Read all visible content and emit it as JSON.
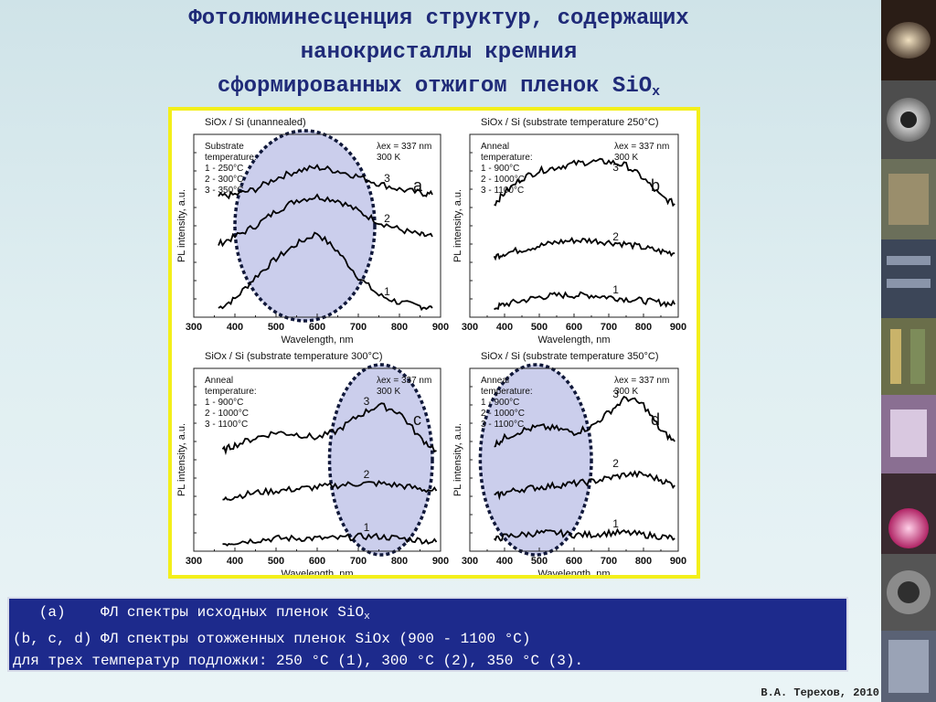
{
  "title": {
    "line1": "Фотолюминесценция структур, содержащих",
    "line2": "нанокристаллы кремния",
    "line3": "сформированных отжигом пленок SiO",
    "line3_sub": "x"
  },
  "caption": {
    "line1_prefix": "   (a)    ФЛ спектры исходных пленок SiO",
    "line1_sub": "x",
    "line2": "(b, c, d) ФЛ спектры отожженных пленок SiOx (900 - 1100 °C)",
    "line3": "для трех температур подложки: 250 °C (1), 300 °C (2), 350 °C (3)."
  },
  "author": "В.А. Терехов, 2010",
  "colors": {
    "title": "#1f2a78",
    "caption_bg": "#1d2a8c",
    "frame_border": "#f3ef1a",
    "ellipse_fill": "#b9bde6"
  },
  "chart_data": [
    {
      "type": "line",
      "panel_letter": "a",
      "title": "SiOx / Si (unannealed)",
      "xlabel": "Wavelength, nm",
      "ylabel": "PL intensity, a.u.",
      "xlim": [
        300,
        900
      ],
      "xticks": [
        300,
        400,
        500,
        600,
        700,
        800,
        900
      ],
      "legend_title": "Substrate temperature:",
      "legend": [
        "1 - 250°C",
        "2 - 300°C",
        "3 - 350°C"
      ],
      "excitation": "λex = 337 nm",
      "temperature": "300 K",
      "x": [
        360,
        400,
        450,
        500,
        550,
        600,
        650,
        700,
        750,
        800,
        850,
        880
      ],
      "series": [
        {
          "name": "1",
          "values": [
            0.05,
            0.1,
            0.22,
            0.32,
            0.4,
            0.46,
            0.36,
            0.22,
            0.12,
            0.08,
            0.06,
            0.05
          ]
        },
        {
          "name": "2",
          "values": [
            0.4,
            0.44,
            0.5,
            0.58,
            0.64,
            0.66,
            0.64,
            0.58,
            0.52,
            0.48,
            0.45,
            0.44
          ]
        },
        {
          "name": "3",
          "values": [
            0.66,
            0.67,
            0.7,
            0.76,
            0.8,
            0.82,
            0.8,
            0.77,
            0.73,
            0.7,
            0.68,
            0.67
          ]
        }
      ],
      "highlight_range": [
        400,
        740
      ]
    },
    {
      "type": "line",
      "panel_letter": "b",
      "title": "SiOx / Si (substrate temperature 250°C)",
      "xlabel": "Wavelength, nm",
      "ylabel": "PL intensity, a.u.",
      "xlim": [
        300,
        900
      ],
      "xticks": [
        300,
        400,
        500,
        600,
        700,
        800,
        900
      ],
      "legend_title": "Anneal temperature:",
      "legend": [
        "1 - 900°C",
        "2 - 1000°C",
        "3 - 1100°C"
      ],
      "excitation": "λex = 337 nm",
      "temperature": "300 K",
      "x": [
        370,
        400,
        450,
        500,
        550,
        600,
        650,
        700,
        750,
        800,
        850,
        890
      ],
      "series": [
        {
          "name": "1",
          "values": [
            0.05,
            0.07,
            0.09,
            0.11,
            0.12,
            0.12,
            0.12,
            0.11,
            0.1,
            0.09,
            0.08,
            0.07
          ]
        },
        {
          "name": "2",
          "values": [
            0.33,
            0.35,
            0.37,
            0.39,
            0.41,
            0.42,
            0.42,
            0.41,
            0.4,
            0.38,
            0.36,
            0.35
          ]
        },
        {
          "name": "3",
          "values": [
            0.62,
            0.68,
            0.76,
            0.8,
            0.82,
            0.84,
            0.85,
            0.85,
            0.83,
            0.76,
            0.66,
            0.62
          ]
        }
      ]
    },
    {
      "type": "line",
      "panel_letter": "c",
      "title": "SiOx / Si (substrate temperature 300°C)",
      "xlabel": "Wavelength, nm",
      "ylabel": "PL intensity, a.u.",
      "xlim": [
        300,
        900
      ],
      "xticks": [
        300,
        400,
        500,
        600,
        700,
        800,
        900
      ],
      "legend_title": "Anneal temperature:",
      "legend": [
        "1 - 900°C",
        "2 - 1000°C",
        "3 - 1100°C"
      ],
      "excitation": "λex = 337 nm",
      "temperature": "300 K",
      "x": [
        370,
        400,
        450,
        500,
        550,
        600,
        650,
        700,
        750,
        800,
        850,
        890
      ],
      "series": [
        {
          "name": "1",
          "values": [
            0.04,
            0.05,
            0.06,
            0.07,
            0.07,
            0.07,
            0.07,
            0.08,
            0.08,
            0.07,
            0.06,
            0.05
          ]
        },
        {
          "name": "2",
          "values": [
            0.28,
            0.3,
            0.32,
            0.33,
            0.34,
            0.35,
            0.36,
            0.37,
            0.37,
            0.36,
            0.34,
            0.33
          ]
        },
        {
          "name": "3",
          "values": [
            0.55,
            0.58,
            0.62,
            0.65,
            0.64,
            0.62,
            0.66,
            0.74,
            0.8,
            0.76,
            0.62,
            0.55
          ]
        }
      ],
      "highlight_range": [
        630,
        880
      ]
    },
    {
      "type": "line",
      "panel_letter": "d",
      "title": "SiOx / Si (substrate temperature 350°C)",
      "xlabel": "Wavelength, nm",
      "ylabel": "PL intensity, a.u.",
      "xlim": [
        300,
        900
      ],
      "xticks": [
        300,
        400,
        500,
        600,
        700,
        800,
        900
      ],
      "legend_title": "Anneal temperature:",
      "legend": [
        "1 - 900°C",
        "2 - 1000°C",
        "3 - 1100°C"
      ],
      "excitation": "λex = 337 nm",
      "temperature": "300 K",
      "x": [
        370,
        400,
        450,
        500,
        550,
        600,
        650,
        700,
        750,
        800,
        850,
        890
      ],
      "series": [
        {
          "name": "1",
          "values": [
            0.06,
            0.08,
            0.09,
            0.1,
            0.1,
            0.09,
            0.09,
            0.1,
            0.1,
            0.09,
            0.08,
            0.07
          ]
        },
        {
          "name": "2",
          "values": [
            0.3,
            0.32,
            0.34,
            0.35,
            0.36,
            0.37,
            0.38,
            0.4,
            0.42,
            0.42,
            0.39,
            0.36
          ]
        },
        {
          "name": "3",
          "values": [
            0.58,
            0.62,
            0.66,
            0.68,
            0.67,
            0.65,
            0.68,
            0.76,
            0.84,
            0.8,
            0.66,
            0.6
          ]
        }
      ],
      "highlight_range": [
        330,
        650
      ]
    }
  ]
}
